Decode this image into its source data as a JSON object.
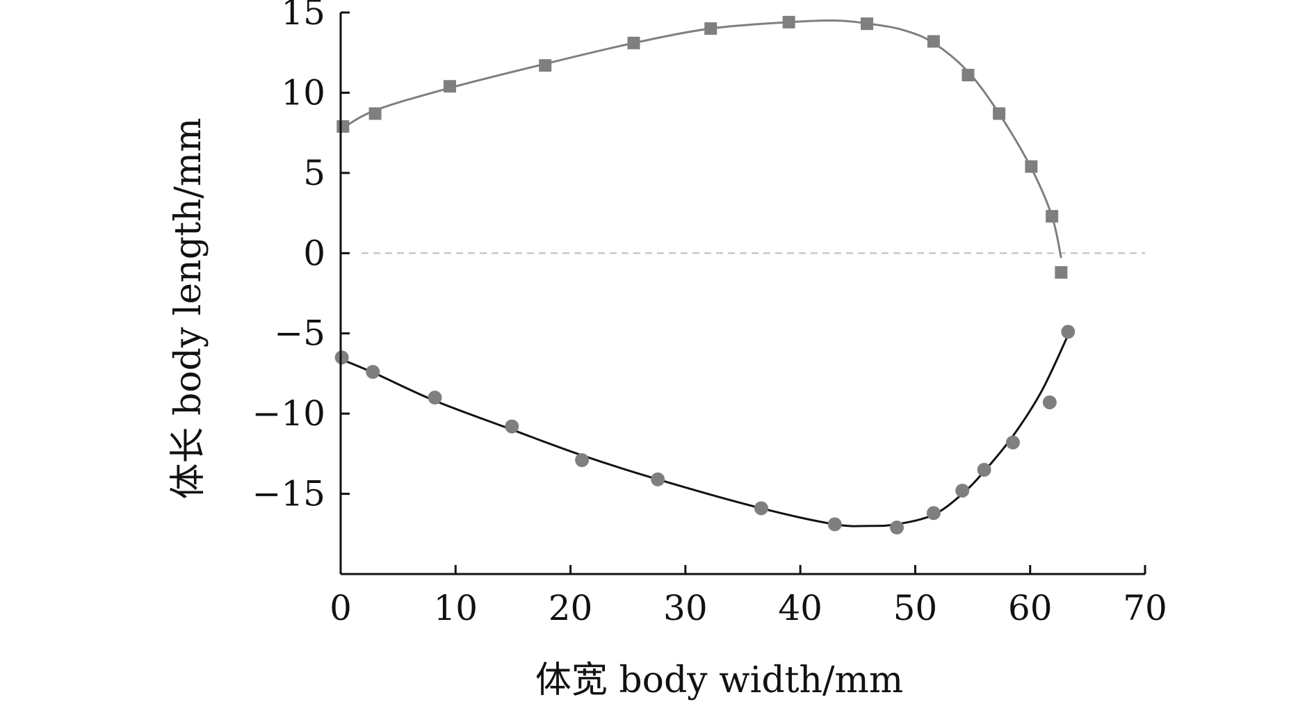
{
  "chart_data": {
    "type": "scatter",
    "title": "",
    "xlabel": "体宽 body width/mm",
    "ylabel": "体长 body length/mm",
    "xlim": [
      0,
      70
    ],
    "ylim": [
      -20,
      15
    ],
    "xticks": [
      0,
      10,
      20,
      30,
      40,
      50,
      60,
      70
    ],
    "yticks": [
      15,
      10,
      5,
      0,
      -5,
      -10,
      -15
    ],
    "ytick_labels": [
      "15",
      "10",
      "5",
      "0",
      "−5",
      "−10",
      "−15"
    ],
    "grid": false,
    "reference_line": {
      "y": 0,
      "style": "dashed",
      "color": "#c8c8c8"
    },
    "colors": {
      "upper": "#7f7f7f",
      "lower_points": "#7f7f7f",
      "lower_curve": "#111111",
      "axis": "#111111"
    },
    "series": [
      {
        "marker": "square",
        "x": [
          0.2,
          3.0,
          9.5,
          17.8,
          25.5,
          32.2,
          39.0,
          45.8,
          51.6,
          54.6,
          57.3,
          60.1,
          61.9,
          62.7
        ],
        "y": [
          7.9,
          8.7,
          10.4,
          11.7,
          13.1,
          14.0,
          14.4,
          14.3,
          13.2,
          11.1,
          8.7,
          5.4,
          2.3,
          -1.2
        ]
      },
      {
        "marker": "circle",
        "x": [
          0.1,
          2.8,
          8.2,
          14.9,
          21.0,
          27.6,
          36.6,
          43.0,
          48.4,
          51.6,
          54.1,
          56.0,
          58.5,
          61.7,
          63.3
        ],
        "y": [
          -6.5,
          -7.4,
          -9.0,
          -10.8,
          -12.9,
          -14.1,
          -15.9,
          -16.9,
          -17.1,
          -16.2,
          -14.8,
          -13.5,
          -11.8,
          -9.3,
          -4.9
        ]
      }
    ],
    "fit_curves": [
      {
        "color": "#7f7f7f",
        "x": [
          0,
          3,
          9.5,
          17.8,
          25.5,
          32.2,
          39,
          43,
          46,
          49,
          51.6,
          54.6,
          57.3,
          60.1,
          61.9,
          62.7
        ],
        "y": [
          7.7,
          8.9,
          10.3,
          11.8,
          13.1,
          14.0,
          14.4,
          14.5,
          14.3,
          13.9,
          13.1,
          11.3,
          8.7,
          5.3,
          2.3,
          -0.3
        ]
      },
      {
        "color": "#111111",
        "x": [
          0,
          3,
          8.2,
          14.9,
          21,
          27.6,
          36.6,
          43,
          46,
          48.4,
          51.6,
          54.1,
          56,
          58.5,
          61,
          63.3
        ],
        "y": [
          -6.6,
          -7.5,
          -9.2,
          -11.0,
          -12.6,
          -14.1,
          -15.9,
          -16.9,
          -17.0,
          -16.9,
          -16.3,
          -15.0,
          -13.6,
          -11.4,
          -8.6,
          -5.1
        ]
      }
    ]
  }
}
